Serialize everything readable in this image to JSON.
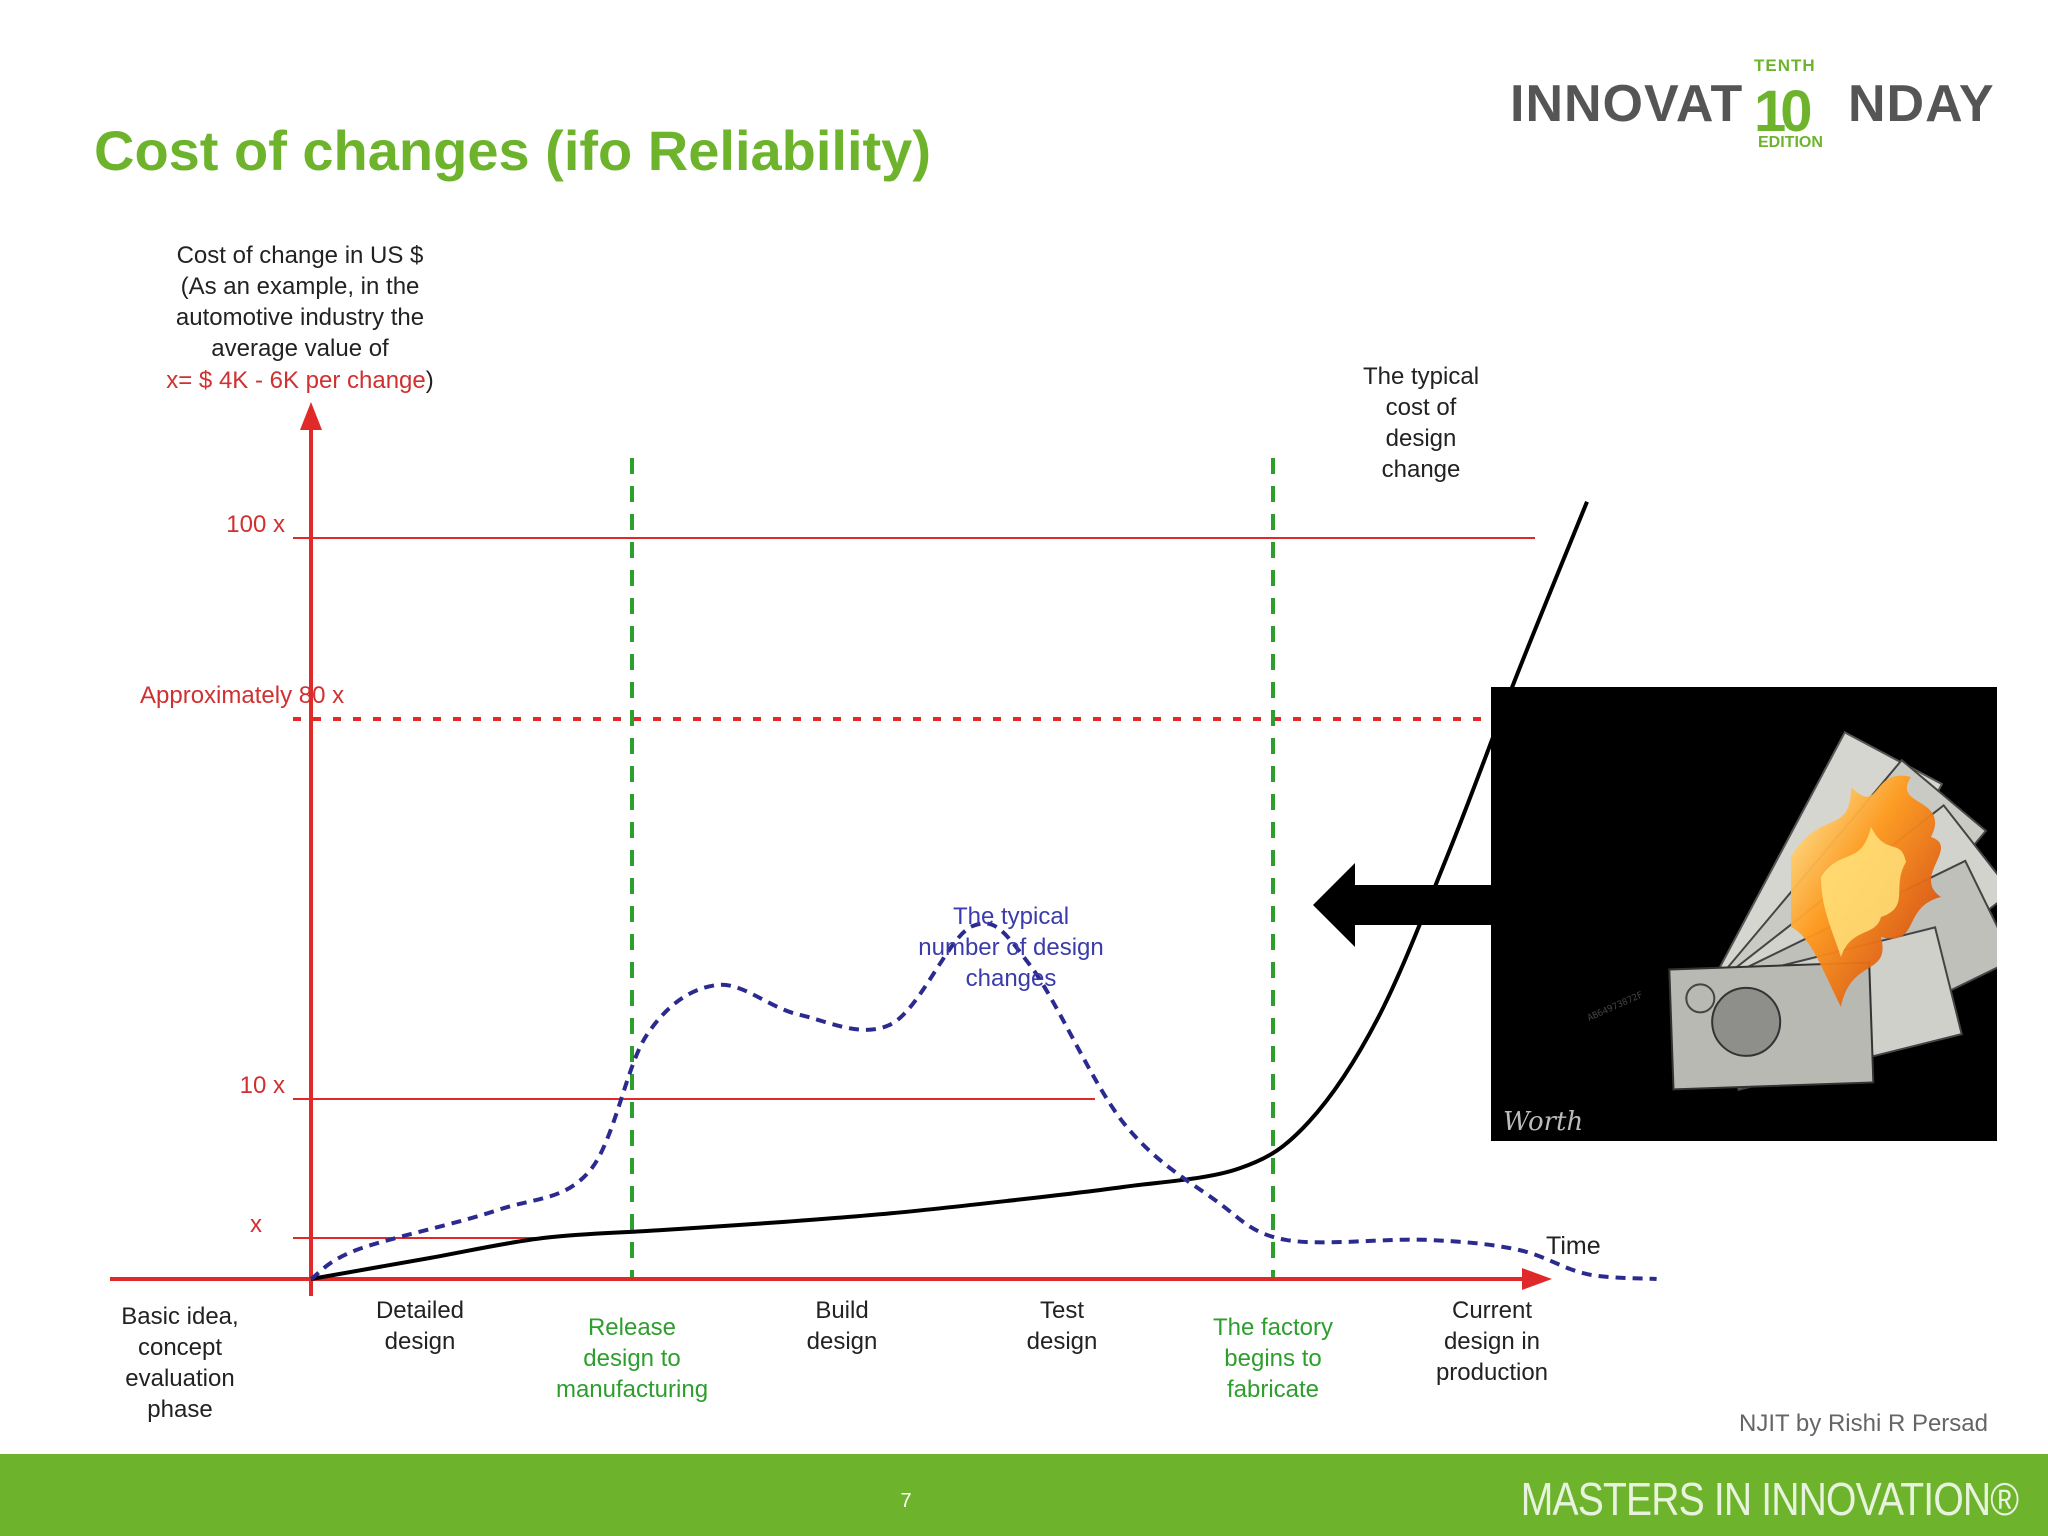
{
  "slide": {
    "title": "Cost of changes (ifo Reliability)",
    "credit": "NJIT by Rishi R Persad",
    "page_number": "7",
    "footer_brand": "MASTERS IN INNOVATION®"
  },
  "logo": {
    "left": "INNOVAT",
    "ten": "10",
    "right": "NDAY",
    "top": "TENTH",
    "bottom": "EDITION"
  },
  "photo": {
    "signature": "Worth",
    "serial": "AB64973872F"
  },
  "colors": {
    "title_green": "#6db42c",
    "axis_red": "#e02a2a",
    "phase_green": "#2e9e2e",
    "changes_blue": "#2b2b8f",
    "cost_black": "#000000"
  },
  "chart_data": {
    "type": "line",
    "ylabel": {
      "lines": [
        "Cost of change in US $",
        "(As an example, in the",
        "automotive industry the",
        "average value of"
      ],
      "highlight": "x= $ 4K - 6K  per change",
      "close": ")"
    },
    "xlabel": "Time",
    "x_categories": [
      {
        "label": [
          "Basic idea,",
          "concept",
          "evaluation",
          "phase"
        ],
        "highlight": false
      },
      {
        "label": [
          "Detailed",
          "design"
        ],
        "highlight": false
      },
      {
        "label": [
          "Release",
          "design to",
          "manufacturing"
        ],
        "highlight": true
      },
      {
        "label": [
          "Build",
          "design"
        ],
        "highlight": false
      },
      {
        "label": [
          "Test",
          "design"
        ],
        "highlight": false
      },
      {
        "label": [
          "The factory",
          "begins to",
          "fabricate"
        ],
        "highlight": true
      },
      {
        "label": [
          "Current",
          "design in",
          "production"
        ],
        "highlight": false
      }
    ],
    "y_levels": [
      {
        "label": "x",
        "value": 1,
        "style": "solid"
      },
      {
        "label": "10 x",
        "value": 10,
        "style": "solid"
      },
      {
        "label": "Approximately 80 x",
        "value": 80,
        "style": "dotted"
      },
      {
        "label": "100 x",
        "value": 100,
        "style": "solid"
      }
    ],
    "phase_markers": [
      "Release design to manufacturing",
      "The factory begins to fabricate"
    ],
    "series": [
      {
        "name": "The typical cost of design change",
        "label_lines": [
          "The typical",
          "cost of",
          "design",
          "change"
        ],
        "style": "solid",
        "x": [
          0,
          0.5,
          1.0,
          1.5,
          2.0,
          2.5,
          3.0,
          3.5,
          4.0,
          4.3,
          4.6,
          4.9,
          5.2,
          5.5
        ],
        "values": [
          0,
          0.5,
          1.0,
          1.5,
          2.0,
          2.6,
          3.4,
          4.3,
          5.5,
          8.5,
          25,
          55,
          85,
          108
        ]
      },
      {
        "name": "The typical number of design changes",
        "label_lines": [
          "The typical",
          "number of design",
          "changes"
        ],
        "style": "dashed",
        "x": [
          0,
          0.2,
          0.8,
          1.2,
          1.45,
          1.75,
          2.1,
          2.5,
          2.85,
          3.1,
          3.5,
          3.9,
          4.2,
          4.8,
          5.2,
          5.5,
          5.8
        ],
        "values": [
          0,
          3,
          7,
          11,
          25,
          30,
          27,
          26,
          36,
          32,
          16,
          8,
          4,
          4,
          3,
          0.5,
          0
        ]
      }
    ]
  }
}
